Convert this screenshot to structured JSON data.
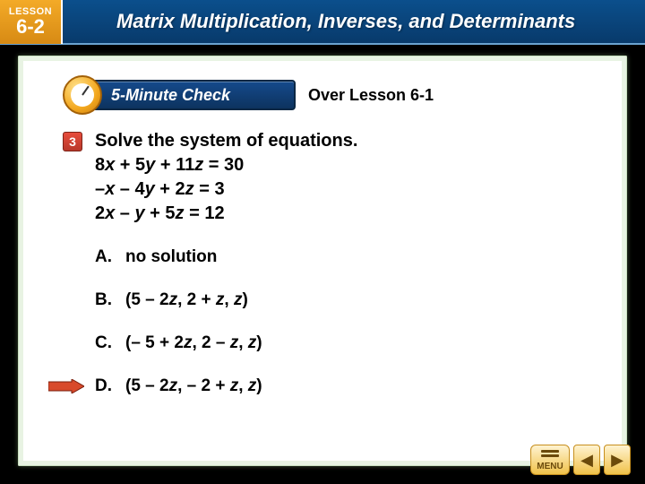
{
  "header": {
    "lesson_top": "LESSON",
    "lesson_num": "6-2",
    "title": "Matrix Multiplication, Inverses, and Determinants"
  },
  "fmc": {
    "badge_text": "5-Minute Check",
    "over_text": "Over Lesson 6-1"
  },
  "question": {
    "number": "3",
    "stem": "Solve the system of equations.",
    "eq1_html": "8<i>x</i> + 5<i>y</i> + 11<i>z</i> = 30",
    "eq2_html": "–<i>x</i> – 4<i>y</i> + 2<i>z</i> = 3",
    "eq3_html": "2<i>x</i> – <i>y</i> + 5<i>z</i> = 12"
  },
  "options": {
    "A": {
      "label": "A.",
      "text_html": "no solution"
    },
    "B": {
      "label": "B.",
      "text_html": "(5 – 2<i>z</i>, 2 + <i>z</i>, <i>z</i>)"
    },
    "C": {
      "label": "C.",
      "text_html": "(– 5 + 2<i>z</i>, 2 – <i>z</i>, <i>z</i>)"
    },
    "D": {
      "label": "D.",
      "text_html": "(5 – 2<i>z</i>, – 2 + <i>z</i>, <i>z</i>)"
    }
  },
  "correct_option": "D",
  "colors": {
    "header_bg": "#0b4f8c",
    "badge_bg": "#f4ab28",
    "arrow_fill": "#d84a2b",
    "arrow_stroke": "#7a1f0e"
  },
  "nav": {
    "menu_label": "MENU"
  }
}
